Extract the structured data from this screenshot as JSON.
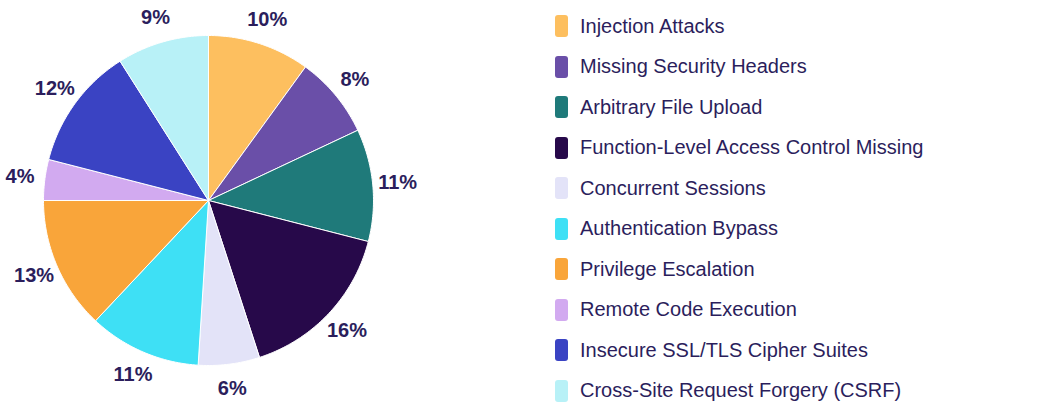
{
  "chart_data": {
    "type": "pie",
    "categories": [
      "Injection Attacks",
      "Missing Security Headers",
      "Arbitrary File Upload",
      "Function-Level Access Control Missing",
      "Concurrent Sessions",
      "Authentication Bypass",
      "Privilege Escalation",
      "Remote Code Execution",
      "Insecure SSL/TLS Cipher Suites",
      "Cross-Site Request Forgery (CSRF)"
    ],
    "values": [
      10,
      8,
      11,
      16,
      6,
      11,
      13,
      4,
      12,
      9
    ],
    "value_labels": [
      "10%",
      "8%",
      "11%",
      "16%",
      "6%",
      "11%",
      "13%",
      "4%",
      "12%",
      "9%"
    ],
    "colors": [
      "#fdbf5f",
      "#6a4fa8",
      "#1f7a7a",
      "#27094a",
      "#e3e3f8",
      "#3ee0f5",
      "#f9a53a",
      "#d2aaf0",
      "#3a43c3",
      "#b8f1f7"
    ],
    "data_labels": true,
    "legend": "right"
  }
}
